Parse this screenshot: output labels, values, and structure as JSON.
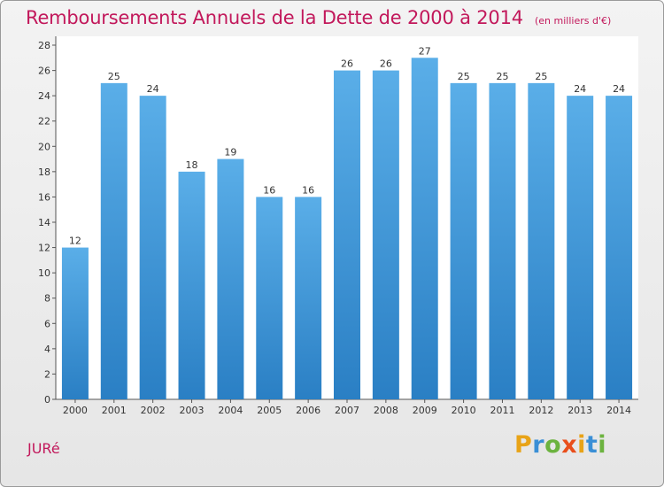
{
  "chart_data": {
    "type": "bar",
    "title": "Remboursements Annuels de la Dette de 2000 à 2014",
    "subtitle": "(en milliers d'€)",
    "categories": [
      "2000",
      "2001",
      "2002",
      "2003",
      "2004",
      "2005",
      "2006",
      "2007",
      "2008",
      "2009",
      "2010",
      "2011",
      "2012",
      "2013",
      "2014"
    ],
    "values": [
      12,
      25,
      24,
      18,
      19,
      16,
      16,
      26,
      26,
      27,
      25,
      25,
      25,
      24,
      24
    ],
    "xlabel": "",
    "ylabel": "",
    "ylim": [
      0,
      28
    ],
    "yticks": [
      0,
      2,
      4,
      6,
      8,
      10,
      12,
      14,
      16,
      18,
      20,
      22,
      24,
      26,
      28
    ],
    "grid": false,
    "legend": "none",
    "data_labels": true,
    "bar_color_top": "#5aaee8",
    "bar_color_bottom": "#2a7fc4"
  },
  "footer": {
    "place": "JURé",
    "brand_letters": [
      "P",
      "r",
      "o",
      "x",
      "i",
      "t",
      "i"
    ],
    "brand_colors": [
      "#e8a317",
      "#3a8fd6",
      "#6cb33f",
      "#e94e1b",
      "#e8a317",
      "#3a8fd6",
      "#6cb33f"
    ]
  }
}
